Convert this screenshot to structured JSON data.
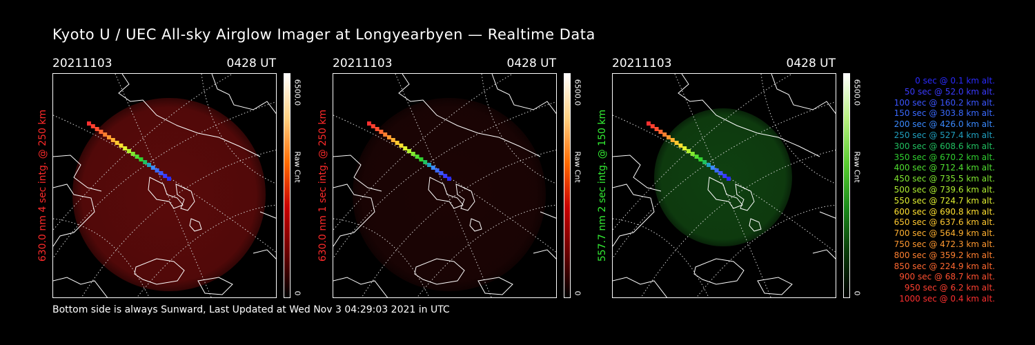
{
  "title": "Kyoto U / UEC All-sky Airglow Imager at Longyearbyen — Realtime Data",
  "footer": "Bottom side is always Sunward, Last Updated at Wed Nov  3 04:29:03 2021 in UTC",
  "panels": [
    {
      "date": "20211103",
      "time": "0428 UT",
      "ylabel": "630.0 nm 4 sec intg. @ 250 km",
      "ylabel_color": "#ff2a2a",
      "cbar_max": "6500.0",
      "cbar_unit": "Raw Cnt",
      "cbar_min": "0",
      "glow_color": "#5a0a0a",
      "cbar_gradient": [
        "#000000",
        "#6a0000",
        "#c80000",
        "#ff6a00",
        "#ffd080",
        "#ffffff"
      ]
    },
    {
      "date": "20211103",
      "time": "0428 UT",
      "ylabel": "630.0 nm 1 sec intg. @ 250 km",
      "ylabel_color": "#ff2a2a",
      "cbar_max": "6500.0",
      "cbar_unit": "Raw Cnt",
      "cbar_min": "0",
      "glow_color": "#1c0404",
      "cbar_gradient": [
        "#000000",
        "#6a0000",
        "#c80000",
        "#ff6a00",
        "#ffd080",
        "#ffffff"
      ]
    },
    {
      "date": "20211103",
      "time": "0428 UT",
      "ylabel": "557.7 nm 2 sec intg. @ 150 km",
      "ylabel_color": "#33ee33",
      "cbar_max": "6500.0",
      "cbar_unit": "Raw Cnt",
      "cbar_min": "0",
      "glow_color": "#0f4010",
      "cbar_gradient": [
        "#000000",
        "#0a3a0a",
        "#1a8a1a",
        "#5acc30",
        "#b8f080",
        "#ffffff"
      ]
    }
  ],
  "legend": [
    {
      "text": "0 sec @   0.1 km alt.",
      "color": "#2a2aff"
    },
    {
      "text": "50 sec @  52.0 km alt.",
      "color": "#3a3aff"
    },
    {
      "text": "100 sec @ 160.2 km alt.",
      "color": "#3a55ff"
    },
    {
      "text": "150 sec @ 303.8 km alt.",
      "color": "#3a6aff"
    },
    {
      "text": "200 sec @ 426.0 km alt.",
      "color": "#3a8aff"
    },
    {
      "text": "250 sec @ 527.4 km alt.",
      "color": "#20a0c0"
    },
    {
      "text": "300 sec @ 608.6 km alt.",
      "color": "#20c060"
    },
    {
      "text": "350 sec @ 670.2 km alt.",
      "color": "#30d030"
    },
    {
      "text": "400 sec @ 712.4 km alt.",
      "color": "#50e030"
    },
    {
      "text": "450 sec @ 735.5 km alt.",
      "color": "#80e830"
    },
    {
      "text": "500 sec @ 739.6 km alt.",
      "color": "#b0f030"
    },
    {
      "text": "550 sec @ 724.7 km alt.",
      "color": "#e0f030"
    },
    {
      "text": "600 sec @ 690.8 km alt.",
      "color": "#ffe030"
    },
    {
      "text": "650 sec @ 637.6 km alt.",
      "color": "#ffc830"
    },
    {
      "text": "700 sec @ 564.9 km alt.",
      "color": "#ffb030"
    },
    {
      "text": "750 sec @ 472.3 km alt.",
      "color": "#ff9830"
    },
    {
      "text": "800 sec @ 359.2 km alt.",
      "color": "#ff8030"
    },
    {
      "text": "850 sec @ 224.9 km alt.",
      "color": "#ff6830"
    },
    {
      "text": "900 sec @  68.7 km alt.",
      "color": "#ff5030"
    },
    {
      "text": "950 sec @   6.2 km alt.",
      "color": "#ff4030"
    },
    {
      "text": "1000 sec @   0.4 km alt.",
      "color": "#ff3030"
    }
  ]
}
